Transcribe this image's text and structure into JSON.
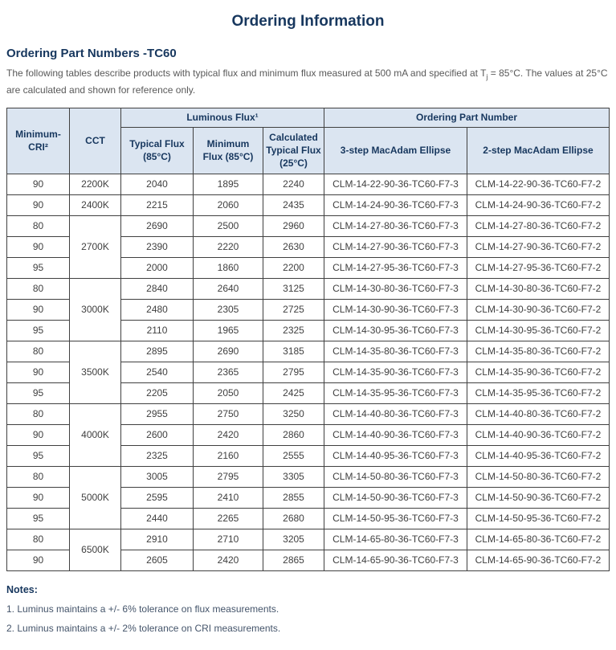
{
  "page": {
    "title": "Ordering Information",
    "section_title": "Ordering Part Numbers -TC60",
    "intro": {
      "before": "The following tables describe products with typical flux and minimum flux measured at 500 mA and specified at T",
      "sub": "j",
      "after": " = 85°C. The values at 25°C are calculated and shown for reference only."
    }
  },
  "table": {
    "header": {
      "min_cri": "Minimum-CRI²",
      "cct": "CCT",
      "luminous_flux_group": "Luminous Flux¹",
      "ordering_group": "Ordering Part Number",
      "typical_flux": "Typical Flux (85°C)",
      "minimum_flux": "Minimum Flux (85°C)",
      "calculated_flux": "Calculated Typical Flux (25°C)",
      "three_step": "3-step MacAdam Ellipse",
      "two_step": "2-step MacAdam Ellipse"
    },
    "groups": [
      {
        "cct": "2200K",
        "rows": [
          {
            "cri": "90",
            "typical": "2040",
            "minimum": "1895",
            "calculated": "2240",
            "pn3": "CLM-14-22-90-36-TC60-F7-3",
            "pn2": "CLM-14-22-90-36-TC60-F7-2"
          }
        ]
      },
      {
        "cct": "2400K",
        "rows": [
          {
            "cri": "90",
            "typical": "2215",
            "minimum": "2060",
            "calculated": "2435",
            "pn3": "CLM-14-24-90-36-TC60-F7-3",
            "pn2": "CLM-14-24-90-36-TC60-F7-2"
          }
        ]
      },
      {
        "cct": "2700K",
        "rows": [
          {
            "cri": "80",
            "typical": "2690",
            "minimum": "2500",
            "calculated": "2960",
            "pn3": "CLM-14-27-80-36-TC60-F7-3",
            "pn2": "CLM-14-27-80-36-TC60-F7-2"
          },
          {
            "cri": "90",
            "typical": "2390",
            "minimum": "2220",
            "calculated": "2630",
            "pn3": "CLM-14-27-90-36-TC60-F7-3",
            "pn2": "CLM-14-27-90-36-TC60-F7-2"
          },
          {
            "cri": "95",
            "typical": "2000",
            "minimum": "1860",
            "calculated": "2200",
            "pn3": "CLM-14-27-95-36-TC60-F7-3",
            "pn2": "CLM-14-27-95-36-TC60-F7-2"
          }
        ]
      },
      {
        "cct": "3000K",
        "rows": [
          {
            "cri": "80",
            "typical": "2840",
            "minimum": "2640",
            "calculated": "3125",
            "pn3": "CLM-14-30-80-36-TC60-F7-3",
            "pn2": "CLM-14-30-80-36-TC60-F7-2"
          },
          {
            "cri": "90",
            "typical": "2480",
            "minimum": "2305",
            "calculated": "2725",
            "pn3": "CLM-14-30-90-36-TC60-F7-3",
            "pn2": "CLM-14-30-90-36-TC60-F7-2"
          },
          {
            "cri": "95",
            "typical": "2110",
            "minimum": "1965",
            "calculated": "2325",
            "pn3": "CLM-14-30-95-36-TC60-F7-3",
            "pn2": "CLM-14-30-95-36-TC60-F7-2"
          }
        ]
      },
      {
        "cct": "3500K",
        "rows": [
          {
            "cri": "80",
            "typical": "2895",
            "minimum": "2690",
            "calculated": "3185",
            "pn3": "CLM-14-35-80-36-TC60-F7-3",
            "pn2": "CLM-14-35-80-36-TC60-F7-2"
          },
          {
            "cri": "90",
            "typical": "2540",
            "minimum": "2365",
            "calculated": "2795",
            "pn3": "CLM-14-35-90-36-TC60-F7-3",
            "pn2": "CLM-14-35-90-36-TC60-F7-2"
          },
          {
            "cri": "95",
            "typical": "2205",
            "minimum": "2050",
            "calculated": "2425",
            "pn3": "CLM-14-35-95-36-TC60-F7-3",
            "pn2": "CLM-14-35-95-36-TC60-F7-2"
          }
        ]
      },
      {
        "cct": "4000K",
        "rows": [
          {
            "cri": "80",
            "typical": "2955",
            "minimum": "2750",
            "calculated": "3250",
            "pn3": "CLM-14-40-80-36-TC60-F7-3",
            "pn2": "CLM-14-40-80-36-TC60-F7-2"
          },
          {
            "cri": "90",
            "typical": "2600",
            "minimum": "2420",
            "calculated": "2860",
            "pn3": "CLM-14-40-90-36-TC60-F7-3",
            "pn2": "CLM-14-40-90-36-TC60-F7-2"
          },
          {
            "cri": "95",
            "typical": "2325",
            "minimum": "2160",
            "calculated": "2555",
            "pn3": "CLM-14-40-95-36-TC60-F7-3",
            "pn2": "CLM-14-40-95-36-TC60-F7-2"
          }
        ]
      },
      {
        "cct": "5000K",
        "rows": [
          {
            "cri": "80",
            "typical": "3005",
            "minimum": "2795",
            "calculated": "3305",
            "pn3": "CLM-14-50-80-36-TC60-F7-3",
            "pn2": "CLM-14-50-80-36-TC60-F7-2"
          },
          {
            "cri": "90",
            "typical": "2595",
            "minimum": "2410",
            "calculated": "2855",
            "pn3": "CLM-14-50-90-36-TC60-F7-3",
            "pn2": "CLM-14-50-90-36-TC60-F7-2"
          },
          {
            "cri": "95",
            "typical": "2440",
            "minimum": "2265",
            "calculated": "2680",
            "pn3": "CLM-14-50-95-36-TC60-F7-3",
            "pn2": "CLM-14-50-95-36-TC60-F7-2"
          }
        ]
      },
      {
        "cct": "6500K",
        "rows": [
          {
            "cri": "80",
            "typical": "2910",
            "minimum": "2710",
            "calculated": "3205",
            "pn3": "CLM-14-65-80-36-TC60-F7-3",
            "pn2": "CLM-14-65-80-36-TC60-F7-2"
          },
          {
            "cri": "90",
            "typical": "2605",
            "minimum": "2420",
            "calculated": "2865",
            "pn3": "CLM-14-65-90-36-TC60-F7-3",
            "pn2": "CLM-14-65-90-36-TC60-F7-2"
          }
        ]
      }
    ]
  },
  "notes": {
    "heading": "Notes:",
    "items": [
      "1. Luminus maintains a +/- 6% tolerance on flux measurements.",
      "2. Luminus maintains a +/- 2% tolerance on CRI measurements."
    ]
  },
  "colors": {
    "heading_navy": "#17375e",
    "header_cell_bg": "#dbe5f1",
    "table_border": "#404040",
    "body_text": "#404040",
    "intro_text": "#595959"
  }
}
